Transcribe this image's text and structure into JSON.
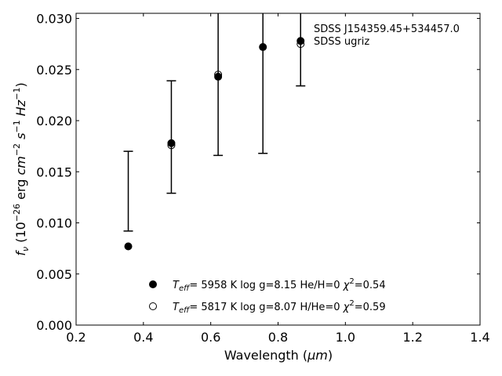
{
  "chart_data": {
    "type": "scatter",
    "title": "",
    "xlabel": "Wavelength (μm)",
    "xlabel_main": "Wavelength (",
    "xlabel_unit": "μm",
    "xlabel_close": ")",
    "ylabel": "f_ν (10^-26 erg cm^-2 s^-1 Hz^-1)",
    "xlim": [
      0.2,
      1.4
    ],
    "ylim": [
      0.0,
      0.0305
    ],
    "xticks": [
      0.2,
      0.4,
      0.6,
      0.8,
      1.0,
      1.2,
      1.4
    ],
    "xtick_labels": [
      "0.2",
      "0.4",
      "0.6",
      "0.8",
      "1.0",
      "1.2",
      "1.4"
    ],
    "yticks": [
      0.0,
      0.005,
      0.01,
      0.015,
      0.02,
      0.025,
      0.03
    ],
    "ytick_labels": [
      "0.000",
      "0.005",
      "0.010",
      "0.015",
      "0.020",
      "0.025",
      "0.030"
    ],
    "grid": false,
    "annotations": [
      "SDSS J154359.45+534457.0",
      "SDSS ugriz"
    ],
    "observed": {
      "name": "SDSS ugriz",
      "x": [
        0.355,
        0.483,
        0.622,
        0.755,
        0.867
      ],
      "y_low": [
        0.0092,
        0.0129,
        0.0166,
        0.0168,
        0.0234
      ],
      "y_high": [
        0.017,
        0.0239,
        0.032,
        0.032,
        0.032
      ]
    },
    "series": [
      {
        "name": "Teff= 5958 K log g=8.15 He/H=0 χ2=0.54",
        "marker": "filled-circle",
        "x": [
          0.355,
          0.483,
          0.622,
          0.755,
          0.867
        ],
        "y": [
          0.0077,
          0.0178,
          0.0243,
          0.0272,
          0.0278
        ]
      },
      {
        "name": "Teff= 5817 K log g=8.07 H/He=0 χ2=0.59",
        "marker": "open-circle",
        "x": [
          0.483,
          0.622,
          0.867
        ],
        "y": [
          0.0176,
          0.0245,
          0.0275
        ]
      }
    ],
    "legend": {
      "placement": "lower-center",
      "entries": [
        {
          "teff": "5958",
          "logg": "8.15",
          "comp": "He/H=0",
          "chi2": "0.54"
        },
        {
          "teff": "5817",
          "logg": "8.07",
          "comp": "H/He=0",
          "chi2": "0.59"
        }
      ]
    }
  }
}
